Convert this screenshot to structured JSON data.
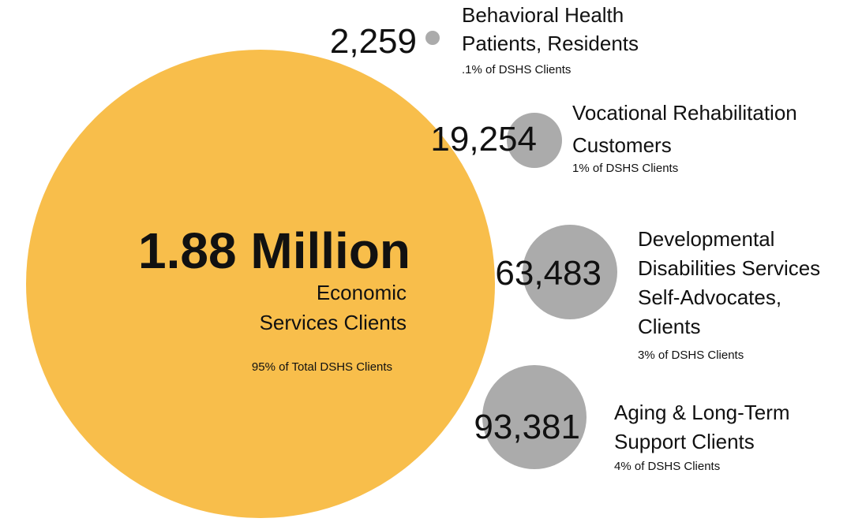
{
  "main": {
    "value": "1.88 Million",
    "label_lines": [
      "Economic",
      "Services Clients"
    ],
    "share": "95% of Total DSHS Clients"
  },
  "nodes": [
    {
      "value": "2,259",
      "label_lines": [
        "Behavioral Health",
        "Patients, Residents"
      ],
      "share": ".1% of DSHS Clients"
    },
    {
      "value": "19,254",
      "label_lines": [
        "Vocational Rehabilitation",
        "Customers"
      ],
      "share": "1% of DSHS Clients"
    },
    {
      "value": "63,483",
      "label_lines": [
        "Developmental",
        "Disabilities Services",
        "Self-Advocates,",
        "Clients"
      ],
      "share": "3% of DSHS Clients"
    },
    {
      "value": "93,381",
      "label_lines": [
        "Aging & Long-Term",
        "Support Clients"
      ],
      "share": "4% of DSHS Clients"
    }
  ]
}
